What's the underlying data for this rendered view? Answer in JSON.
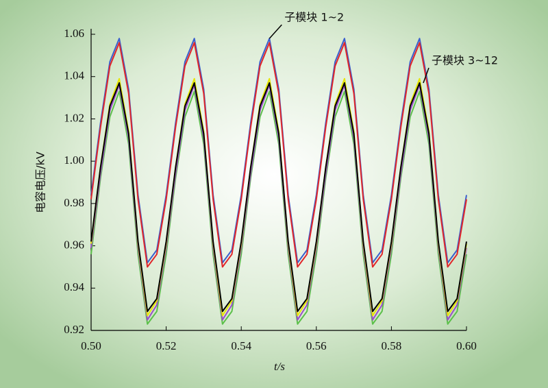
{
  "chart_data": {
    "type": "line",
    "xlabel": "t/s",
    "ylabel": "电容电压/kV",
    "x": [
      0.5,
      0.5025,
      0.505,
      0.5075,
      0.51,
      0.5125,
      0.515,
      0.5175,
      0.52,
      0.5225,
      0.525,
      0.5275,
      0.53,
      0.5325,
      0.535,
      0.5375,
      0.54,
      0.5425,
      0.545,
      0.5475,
      0.55,
      0.5525,
      0.555,
      0.5575,
      0.56,
      0.5625,
      0.565,
      0.5675,
      0.57,
      0.5725,
      0.575,
      0.5775,
      0.58,
      0.5825,
      0.585,
      0.5875,
      0.59,
      0.5925,
      0.595,
      0.5975,
      0.6
    ],
    "series": [
      {
        "color": "#5cc04a",
        "values": [
          0.956,
          0.992,
          1.021,
          1.033,
          1.008,
          0.956,
          0.923,
          0.929,
          0.956,
          0.992,
          1.021,
          1.033,
          1.008,
          0.956,
          0.923,
          0.929,
          0.956,
          0.992,
          1.021,
          1.033,
          1.008,
          0.956,
          0.923,
          0.929,
          0.956,
          0.992,
          1.021,
          1.033,
          1.008,
          0.956,
          0.923,
          0.929,
          0.956,
          0.992,
          1.021,
          1.033,
          1.008,
          0.956,
          0.923,
          0.929,
          0.956
        ]
      },
      {
        "color": "#9a4fc9",
        "values": [
          0.959,
          0.994,
          1.024,
          1.036,
          1.011,
          0.959,
          0.925,
          0.932,
          0.959,
          0.994,
          1.024,
          1.036,
          1.011,
          0.959,
          0.925,
          0.932,
          0.959,
          0.994,
          1.024,
          1.036,
          1.011,
          0.959,
          0.925,
          0.932,
          0.959,
          0.994,
          1.024,
          1.036,
          1.011,
          0.959,
          0.925,
          0.932,
          0.959,
          0.994,
          1.024,
          1.036,
          1.011,
          0.959,
          0.925,
          0.932,
          0.959
        ]
      },
      {
        "color": "#e6e600",
        "values": [
          0.961,
          0.997,
          1.027,
          1.039,
          1.014,
          0.961,
          0.927,
          0.934,
          0.961,
          0.997,
          1.027,
          1.039,
          1.014,
          0.961,
          0.927,
          0.934,
          0.961,
          0.997,
          1.027,
          1.039,
          1.014,
          0.961,
          0.927,
          0.934,
          0.961,
          0.997,
          1.027,
          1.039,
          1.014,
          0.961,
          0.927,
          0.934,
          0.961,
          0.997,
          1.027,
          1.039,
          1.014,
          0.961,
          0.927,
          0.934,
          0.961
        ]
      },
      {
        "color": "#000000",
        "values": [
          0.962,
          0.997,
          1.026,
          1.037,
          1.013,
          0.962,
          0.929,
          0.935,
          0.962,
          0.997,
          1.026,
          1.037,
          1.013,
          0.962,
          0.929,
          0.935,
          0.962,
          0.997,
          1.026,
          1.037,
          1.013,
          0.962,
          0.929,
          0.935,
          0.962,
          0.997,
          1.026,
          1.037,
          1.013,
          0.962,
          0.929,
          0.935,
          0.962,
          0.997,
          1.026,
          1.037,
          1.013,
          0.962,
          0.929,
          0.935,
          0.962
        ]
      },
      {
        "color": "#3a5fcd",
        "values": [
          0.984,
          1.018,
          1.047,
          1.058,
          1.034,
          0.984,
          0.952,
          0.958,
          0.984,
          1.018,
          1.047,
          1.058,
          1.034,
          0.984,
          0.952,
          0.958,
          0.984,
          1.018,
          1.047,
          1.058,
          1.034,
          0.984,
          0.952,
          0.958,
          0.984,
          1.018,
          1.047,
          1.058,
          1.034,
          0.984,
          0.952,
          0.958,
          0.984,
          1.018,
          1.047,
          1.058,
          1.034,
          0.984,
          0.952,
          0.958,
          0.984
        ]
      },
      {
        "color": "#e0262a",
        "values": [
          0.982,
          1.016,
          1.045,
          1.056,
          1.032,
          0.982,
          0.95,
          0.956,
          0.982,
          1.016,
          1.045,
          1.056,
          1.032,
          0.982,
          0.95,
          0.956,
          0.982,
          1.016,
          1.045,
          1.056,
          1.032,
          0.982,
          0.95,
          0.956,
          0.982,
          1.016,
          1.045,
          1.056,
          1.032,
          0.982,
          0.95,
          0.956,
          0.982,
          1.016,
          1.045,
          1.056,
          1.032,
          0.982,
          0.95,
          0.956,
          0.982
        ]
      }
    ],
    "xlim": [
      0.5,
      0.6
    ],
    "xticks": [
      {
        "value": 0.5,
        "label": "0.50"
      },
      0.52,
      0.54,
      0.56,
      0.58,
      {
        "value": 0.6,
        "label": "0.60"
      }
    ],
    "ylim": [
      0.92,
      1.06
    ],
    "yticks": [
      0.92,
      0.94,
      0.96,
      0.98,
      {
        "value": 1.0,
        "label": "1.00"
      },
      1.02,
      1.04,
      1.06
    ],
    "annotations": [
      {
        "text": "子模块 1~2",
        "x": 0.5475,
        "y": 1.058
      },
      {
        "text": "子模块 3~12",
        "x": 0.5885,
        "y": 1.037
      }
    ]
  }
}
